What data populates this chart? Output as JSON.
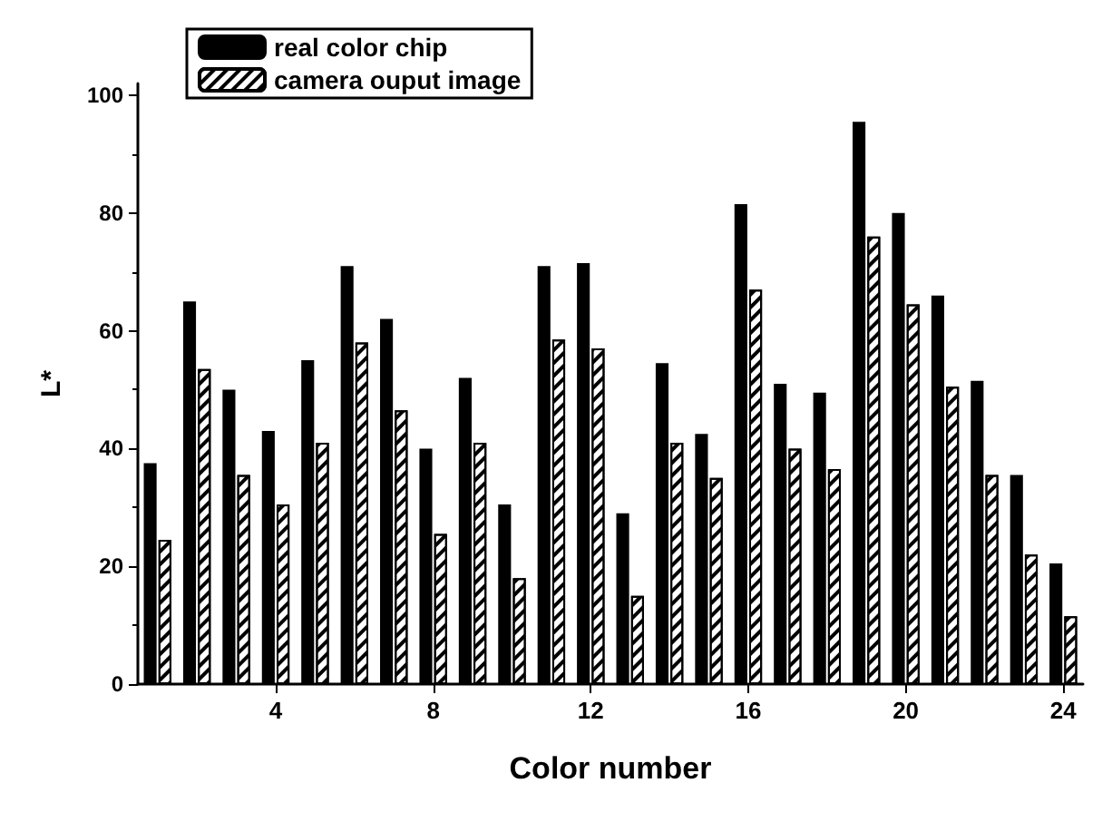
{
  "chart_data": {
    "type": "bar",
    "xlabel": "Color number",
    "ylabel": "L*",
    "categories": [
      null,
      null,
      null,
      "4",
      null,
      null,
      null,
      "8",
      null,
      null,
      null,
      "12",
      null,
      null,
      null,
      "16",
      null,
      null,
      null,
      "20",
      null,
      null,
      null,
      "24"
    ],
    "series": [
      {
        "name": "real color chip",
        "color": "#000000",
        "values": [
          37.5,
          65,
          50,
          43,
          55,
          71,
          62,
          40,
          52,
          30.5,
          71,
          71.5,
          29,
          54.5,
          42.5,
          81.5,
          51,
          49.5,
          95.5,
          80,
          66,
          51.5,
          35.5,
          20.5
        ]
      },
      {
        "name": "camera ouput image",
        "color": "#ffffff",
        "values": [
          24.5,
          53.5,
          35.5,
          30.5,
          41,
          58,
          46.5,
          25.5,
          41,
          18,
          58.5,
          57,
          15,
          41,
          35,
          67,
          40,
          36.5,
          76,
          64.5,
          50.5,
          35.5,
          22,
          11.5
        ]
      }
    ],
    "ylim": [
      0,
      102
    ],
    "yticks": [
      0,
      20,
      40,
      60,
      80,
      100
    ],
    "grid": false,
    "legend": "top left"
  }
}
